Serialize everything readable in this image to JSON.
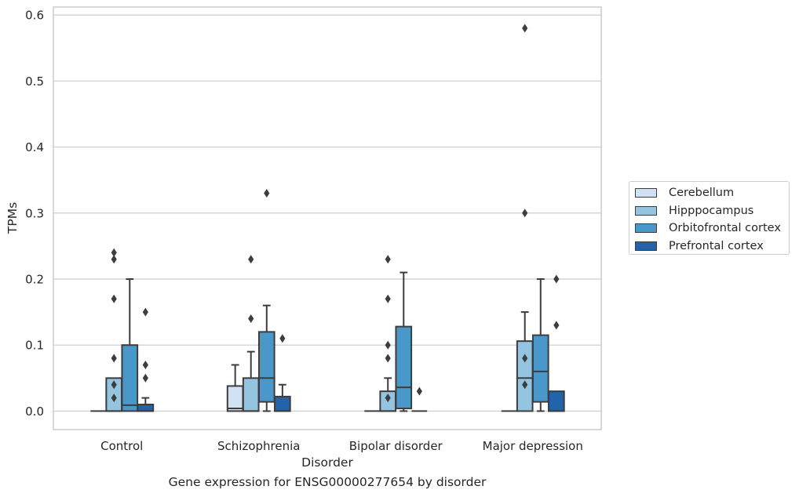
{
  "caption": "Gene expression for ENSG00000277654 by disorder",
  "chart_data": {
    "type": "box",
    "title": "",
    "xlabel": "Disorder",
    "ylabel": "TPMs",
    "ylim": [
      -0.028,
      0.612
    ],
    "yticks": [
      0.0,
      0.1,
      0.2,
      0.3,
      0.4,
      0.5,
      0.6
    ],
    "ytick_labels": [
      "0.0",
      "0.1",
      "0.2",
      "0.3",
      "0.4",
      "0.5",
      "0.6"
    ],
    "grid": "horizontal",
    "legend_position": "outside-right",
    "categories": [
      "Control",
      "Schizophrenia",
      "Bipolar disorder",
      "Major depression"
    ],
    "series": [
      {
        "name": "Cerebellum",
        "color": "#d0e1f2",
        "boxes": [
          {
            "min": 0,
            "q1": 0,
            "median": 0,
            "q3": 0,
            "max": 0,
            "outliers": []
          },
          {
            "min": 0,
            "q1": 0,
            "median": 0.004,
            "q3": 0.038,
            "max": 0.07,
            "outliers": []
          },
          {
            "min": 0,
            "q1": 0,
            "median": 0,
            "q3": 0,
            "max": 0,
            "outliers": []
          },
          {
            "min": 0,
            "q1": 0,
            "median": 0,
            "q3": 0,
            "max": 0,
            "outliers": []
          }
        ]
      },
      {
        "name": "Hipppocampus",
        "color": "#94c4df",
        "boxes": [
          {
            "min": 0,
            "q1": 0,
            "median": 0,
            "q3": 0.05,
            "max": 0.05,
            "outliers": [
              0.08,
              0.04,
              0.02,
              0.17,
              0.23,
              0.24
            ]
          },
          {
            "min": 0,
            "q1": 0,
            "median": 0,
            "q3": 0.05,
            "max": 0.09,
            "outliers": [
              0.14,
              0.23
            ]
          },
          {
            "min": 0,
            "q1": 0,
            "median": 0,
            "q3": 0.03,
            "max": 0.05,
            "outliers": [
              0.02,
              0.1,
              0.17,
              0.08,
              0.23
            ]
          },
          {
            "min": 0,
            "q1": 0,
            "median": 0.05,
            "q3": 0.106,
            "max": 0.15,
            "outliers": [
              0.08,
              0.04,
              0.3,
              0.58
            ]
          }
        ]
      },
      {
        "name": "Orbitofrontal cortex",
        "color": "#4a98c9",
        "boxes": [
          {
            "min": 0,
            "q1": 0,
            "median": 0.009,
            "q3": 0.1,
            "max": 0.2,
            "outliers": []
          },
          {
            "min": 0,
            "q1": 0.014,
            "median": 0.05,
            "q3": 0.12,
            "max": 0.16,
            "outliers": [
              0.33
            ]
          },
          {
            "min": 0,
            "q1": 0.004,
            "median": 0.036,
            "q3": 0.128,
            "max": 0.21,
            "outliers": []
          },
          {
            "min": 0,
            "q1": 0.014,
            "median": 0.06,
            "q3": 0.115,
            "max": 0.2,
            "outliers": []
          }
        ]
      },
      {
        "name": "Prefrontal cortex",
        "color": "#2164ab",
        "boxes": [
          {
            "min": 0,
            "q1": 0,
            "median": 0,
            "q3": 0.01,
            "max": 0.02,
            "outliers": [
              0.07,
              0.05,
              0.15
            ]
          },
          {
            "min": 0,
            "q1": 0,
            "median": 0,
            "q3": 0.022,
            "max": 0.04,
            "outliers": [
              0.11
            ]
          },
          {
            "min": 0,
            "q1": 0,
            "median": 0,
            "q3": 0,
            "max": 0,
            "outliers": [
              0.03
            ]
          },
          {
            "min": 0,
            "q1": 0,
            "median": 0,
            "q3": 0.03,
            "max": 0.03,
            "outliers": [
              0.13,
              0.2
            ]
          }
        ]
      }
    ]
  }
}
